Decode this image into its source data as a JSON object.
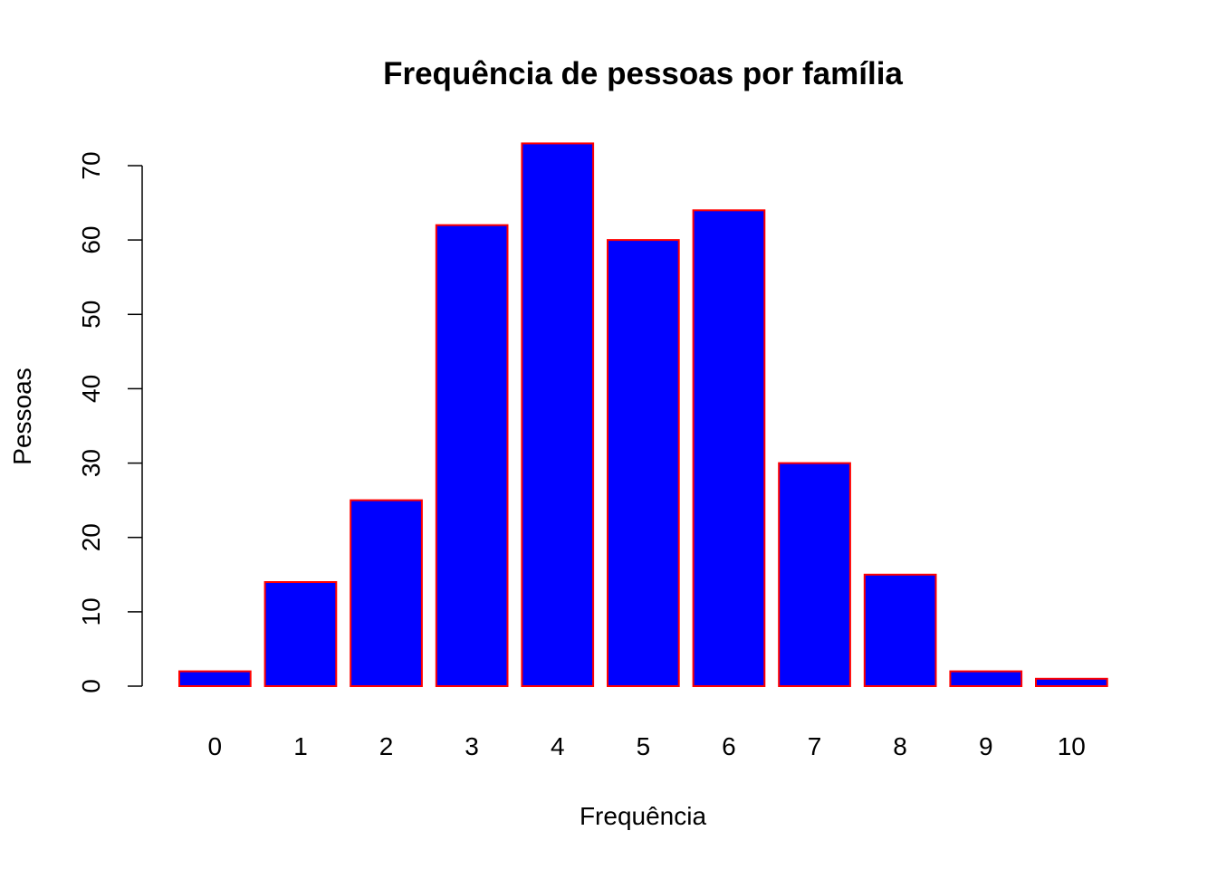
{
  "chart_data": {
    "type": "bar",
    "title": "Frequência de pessoas por família",
    "xlabel": "Frequência",
    "ylabel": "Pessoas",
    "categories": [
      "0",
      "1",
      "2",
      "3",
      "4",
      "5",
      "6",
      "7",
      "8",
      "9",
      "10"
    ],
    "values": [
      2,
      14,
      25,
      62,
      73,
      60,
      64,
      30,
      15,
      2,
      1
    ],
    "ylim": [
      0,
      70
    ],
    "yticks": [
      0,
      10,
      20,
      30,
      40,
      50,
      60,
      70
    ],
    "grid": false,
    "legend": null,
    "colors": {
      "bar_fill": "#0000ff",
      "bar_border": "#ff0000",
      "axis": "#000000",
      "text": "#000000",
      "background": "#ffffff"
    }
  }
}
